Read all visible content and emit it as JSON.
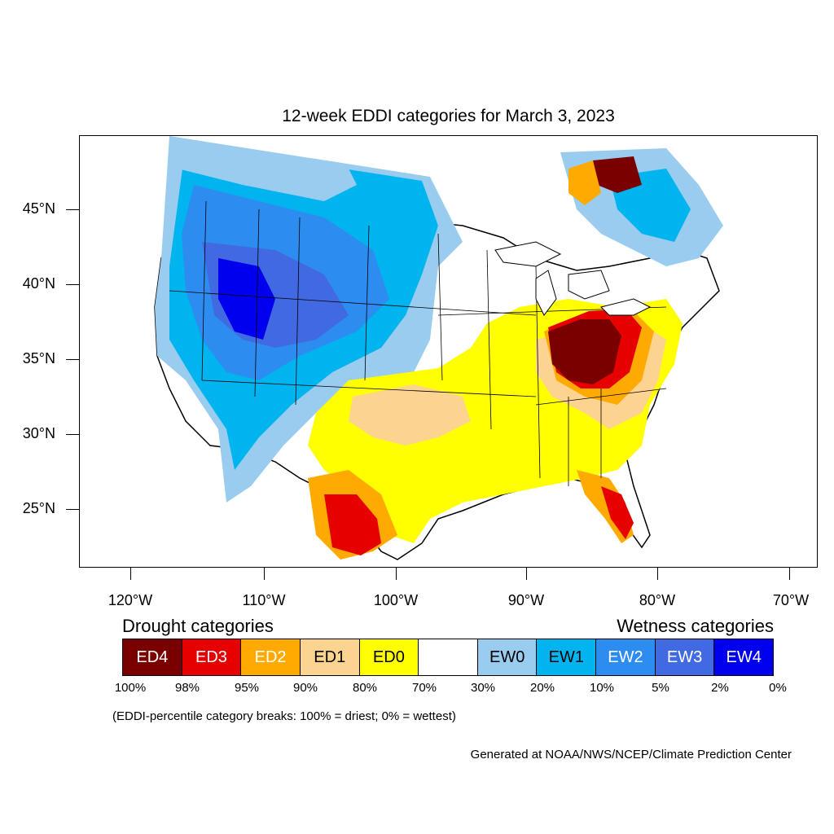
{
  "title": "12-week EDDI categories for March 3, 2023",
  "lat_labels": [
    "45°N",
    "40°N",
    "35°N",
    "30°N",
    "25°N"
  ],
  "lon_labels": [
    "120°W",
    "110°W",
    "100°W",
    "90°W",
    "80°W",
    "70°W"
  ],
  "legend": {
    "drought_heading": "Drought categories",
    "wetness_heading": "Wetness categories",
    "categories": [
      {
        "label": "ED4",
        "color": "#7a0000",
        "text_color": "#ffffff"
      },
      {
        "label": "ED3",
        "color": "#e60000",
        "text_color": "#ffffff"
      },
      {
        "label": "ED2",
        "color": "#ffaa00",
        "text_color": "#ffffff"
      },
      {
        "label": "ED1",
        "color": "#fcd38f",
        "text_color": "#000000"
      },
      {
        "label": "ED0",
        "color": "#ffff00",
        "text_color": "#000000"
      },
      {
        "label": "",
        "color": "#ffffff",
        "text_color": "#000000"
      },
      {
        "label": "EW0",
        "color": "#99ccee",
        "text_color": "#000000"
      },
      {
        "label": "EW1",
        "color": "#00b4f0",
        "text_color": "#000000"
      },
      {
        "label": "EW2",
        "color": "#2d8cf0",
        "text_color": "#ffffff"
      },
      {
        "label": "EW3",
        "color": "#4169e1",
        "text_color": "#ffffff"
      },
      {
        "label": "EW4",
        "color": "#0000ee",
        "text_color": "#ffffff"
      }
    ],
    "percentiles": [
      "100%",
      "98%",
      "95%",
      "90%",
      "80%",
      "70%",
      "30%",
      "20%",
      "10%",
      "5%",
      "2%",
      "0%"
    ]
  },
  "note": "(EDDI-percentile category breaks: 100% = driest; 0% = wettest)",
  "credit": "Generated at NOAA/NWS/NCEP/Climate Prediction Center"
}
